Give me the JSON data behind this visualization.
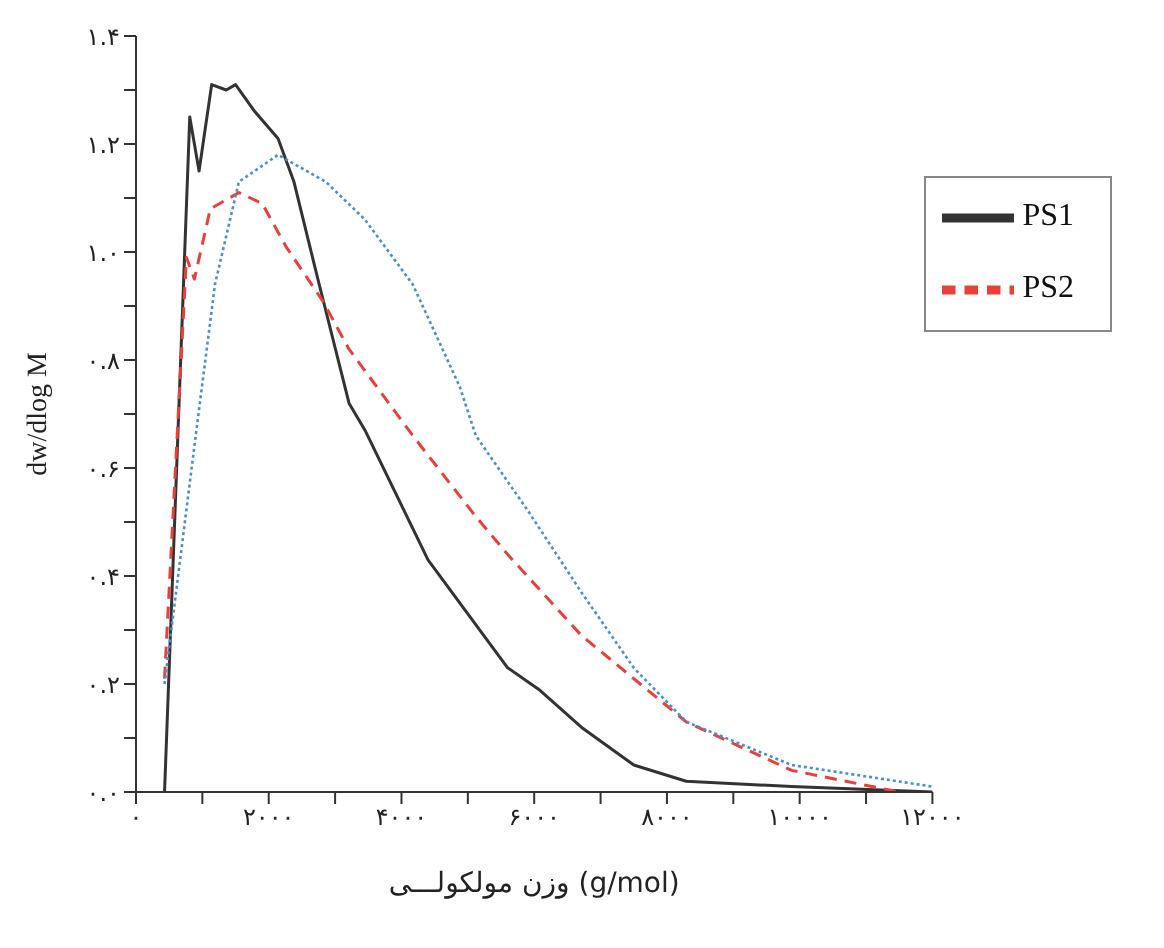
{
  "chart_data": {
    "type": "line",
    "xlabel": "وزن مولکولـــی (g/mol)",
    "ylabel": "dw/dlog M",
    "xlim": [
      0,
      12000
    ],
    "ylim": [
      0,
      1.4
    ],
    "xticks": [
      {
        "value": 0,
        "label": "۰"
      },
      {
        "value": 1000,
        "label": null
      },
      {
        "value": 2000,
        "label": "۲۰۰۰"
      },
      {
        "value": 3000,
        "label": null
      },
      {
        "value": 4000,
        "label": "۴۰۰۰"
      },
      {
        "value": 5000,
        "label": null
      },
      {
        "value": 6000,
        "label": "۶۰۰۰"
      },
      {
        "value": 7000,
        "label": null
      },
      {
        "value": 8000,
        "label": "۸۰۰۰"
      },
      {
        "value": 9000,
        "label": null
      },
      {
        "value": 10000,
        "label": "۱۰۰۰۰"
      },
      {
        "value": 11000,
        "label": null
      },
      {
        "value": 12000,
        "label": "۱۲۰۰۰"
      }
    ],
    "yticks": [
      {
        "value": 0,
        "label": "۰.۰"
      },
      {
        "value": 0.1,
        "label": null
      },
      {
        "value": 0.2,
        "label": "۰.۲"
      },
      {
        "value": 0.3,
        "label": null
      },
      {
        "value": 0.4,
        "label": "۰.۴"
      },
      {
        "value": 0.5,
        "label": null
      },
      {
        "value": 0.6,
        "label": "۰.۶"
      },
      {
        "value": 0.7,
        "label": null
      },
      {
        "value": 0.8,
        "label": "۰.۸"
      },
      {
        "value": 0.9,
        "label": null
      },
      {
        "value": 1.0,
        "label": "۱.۰"
      },
      {
        "value": 1.1,
        "label": null
      },
      {
        "value": 1.2,
        "label": "۱.۲"
      },
      {
        "value": 1.3,
        "label": null
      },
      {
        "value": 1.4,
        "label": "۱.۴"
      }
    ],
    "grid": false,
    "legend": "top right",
    "marker": "none",
    "series": [
      {
        "name": "PS1",
        "color": "#333333",
        "line_style": "solid",
        "x": [
          430,
          810,
          950,
          1140,
          1360,
          1500,
          1790,
          2140,
          2380,
          2740,
          3210,
          3450,
          4400,
          5600,
          6070,
          6710,
          7500,
          8290,
          9880,
          12000
        ],
        "values": [
          0,
          1.25,
          1.15,
          1.31,
          1.3,
          1.31,
          1.26,
          1.21,
          1.13,
          0.95,
          0.72,
          0.67,
          0.43,
          0.23,
          0.19,
          0.12,
          0.05,
          0.02,
          0.01,
          0.0
        ]
      },
      {
        "name": "PS2",
        "color": "#e8403a",
        "line_style": "dashed",
        "x": [
          430,
          760,
          880,
          1120,
          1550,
          1900,
          2260,
          2810,
          3210,
          4170,
          5120,
          5600,
          6710,
          8290,
          9880,
          11500
        ],
        "values": [
          0.21,
          0.99,
          0.95,
          1.08,
          1.11,
          1.09,
          1.01,
          0.91,
          0.82,
          0.66,
          0.51,
          0.44,
          0.29,
          0.13,
          0.04,
          0.0
        ]
      },
      {
        "color": "#4a90c8",
        "line_style": "dotted",
        "x": [
          430,
          900,
          1190,
          1550,
          2140,
          2860,
          3450,
          4170,
          4880,
          5120,
          5910,
          6710,
          7500,
          8290,
          9880,
          12000
        ],
        "values": [
          0.2,
          0.66,
          0.94,
          1.13,
          1.18,
          1.13,
          1.06,
          0.94,
          0.75,
          0.66,
          0.52,
          0.37,
          0.23,
          0.13,
          0.05,
          0.01
        ]
      }
    ]
  }
}
